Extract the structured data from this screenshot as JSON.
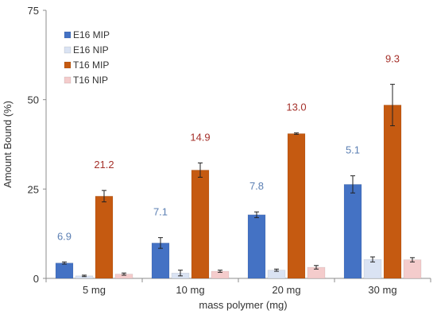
{
  "chart_data": {
    "type": "bar",
    "title": "",
    "xlabel": "mass polymer (mg)",
    "ylabel": "Amount Bound (%)",
    "ylim": [
      0,
      75
    ],
    "yticks": [
      0,
      25,
      50,
      75
    ],
    "grid": false,
    "legend_position": "top-left",
    "categories": [
      "5 mg",
      "10 mg",
      "20 mg",
      "30 mg"
    ],
    "series": [
      {
        "name": "E16 MIP",
        "color": "#4472C4",
        "values": [
          4.3,
          9.9,
          17.8,
          26.3
        ],
        "errors": [
          0.3,
          1.5,
          0.8,
          2.4
        ]
      },
      {
        "name": "E16 NIP",
        "color": "#DAE3F3",
        "values": [
          0.7,
          1.5,
          2.3,
          5.3
        ],
        "errors": [
          0.2,
          0.8,
          0.3,
          0.7
        ]
      },
      {
        "name": "T16 MIP",
        "color": "#C55A11",
        "values": [
          23.0,
          30.3,
          40.5,
          48.5
        ],
        "errors": [
          1.6,
          2.0,
          0.2,
          5.8
        ]
      },
      {
        "name": "T16 NIP",
        "color": "#F4CCCC",
        "values": [
          1.2,
          2.0,
          3.1,
          5.2
        ],
        "errors": [
          0.3,
          0.3,
          0.5,
          0.6
        ]
      }
    ],
    "annotations": {
      "E16": {
        "color": "#5B7FB3",
        "labels": [
          "6.9",
          "7.1",
          "7.8",
          "5.1"
        ]
      },
      "T16": {
        "color": "#A5302A",
        "labels": [
          "21.2",
          "14.9",
          "13.0",
          "9.3"
        ]
      }
    }
  }
}
